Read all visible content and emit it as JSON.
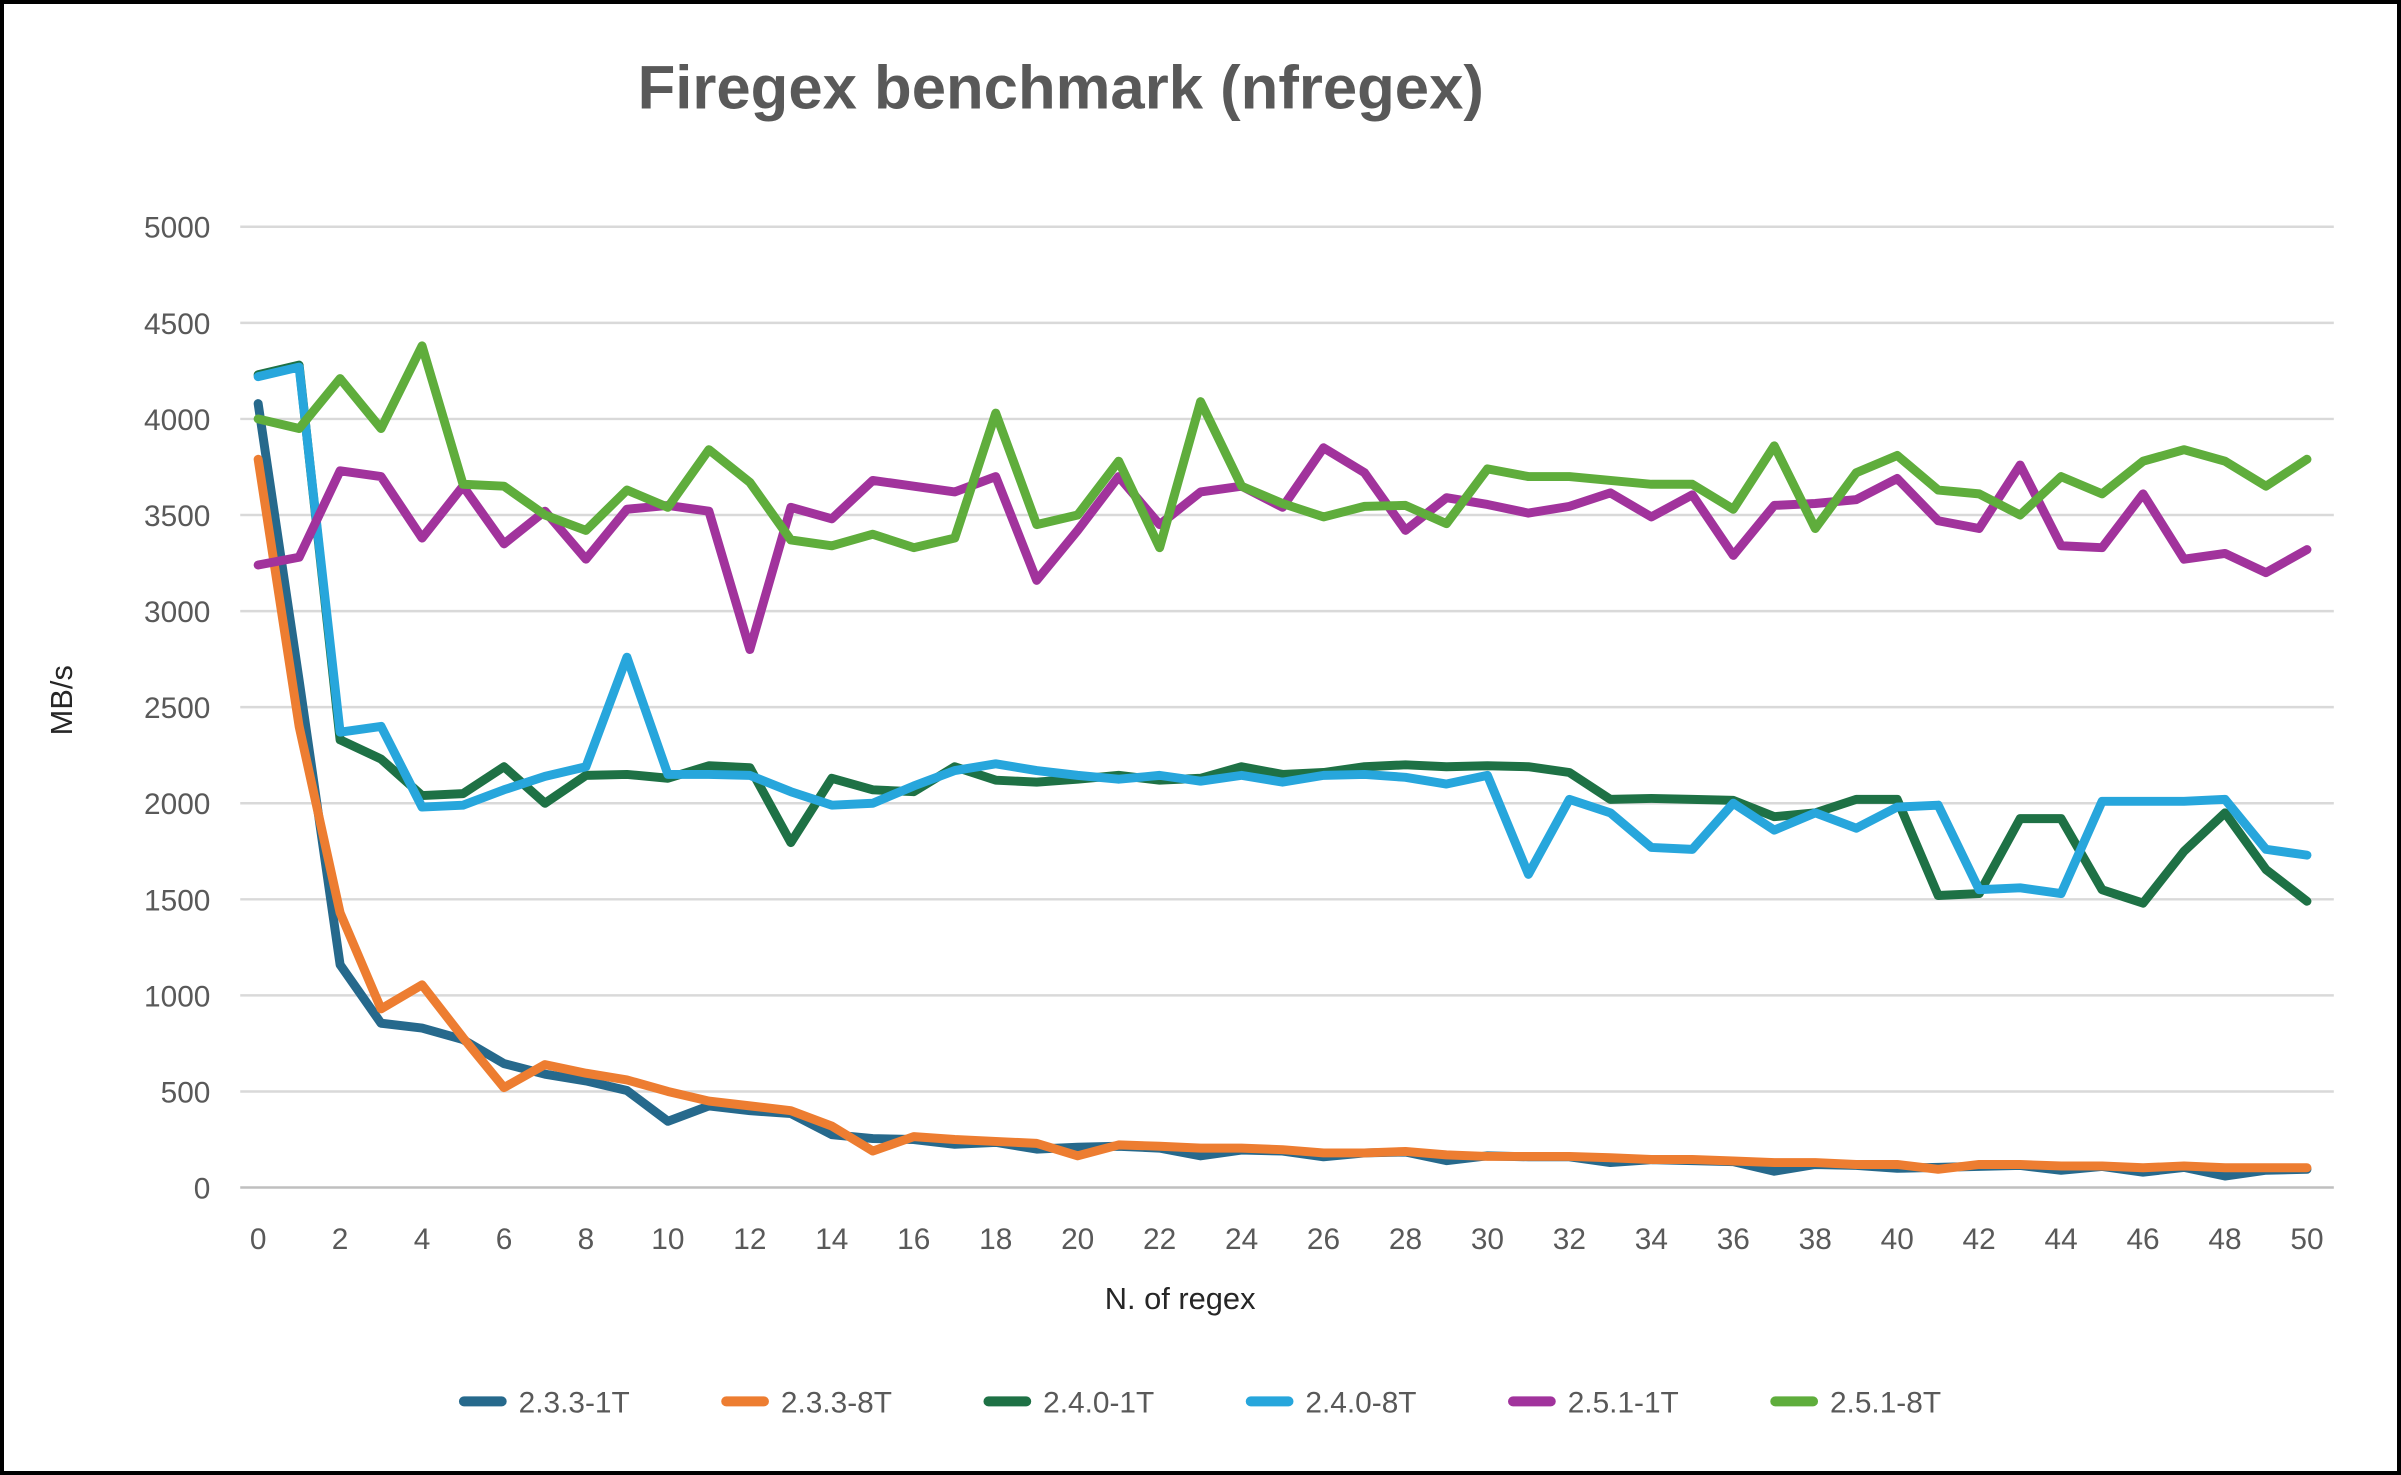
{
  "chart_data": {
    "type": "line",
    "title": "Firegex benchmark (nfregex)",
    "xlabel": "N. of regex",
    "ylabel": "MB/s",
    "ylim": [
      0,
      5000
    ],
    "yticks": [
      0,
      500,
      1000,
      1500,
      2000,
      2500,
      3000,
      3500,
      4000,
      4500,
      5000
    ],
    "xticks": [
      0,
      2,
      4,
      6,
      8,
      10,
      12,
      14,
      16,
      18,
      20,
      22,
      24,
      26,
      28,
      30,
      32,
      34,
      36,
      38,
      40,
      42,
      44,
      46,
      48,
      50
    ],
    "x": [
      0,
      1,
      2,
      3,
      4,
      5,
      6,
      7,
      8,
      9,
      10,
      11,
      12,
      13,
      14,
      15,
      16,
      17,
      18,
      19,
      20,
      21,
      22,
      23,
      24,
      25,
      26,
      27,
      28,
      29,
      30,
      31,
      32,
      33,
      34,
      35,
      36,
      37,
      38,
      39,
      40,
      41,
      42,
      43,
      44,
      45,
      46,
      47,
      48,
      49,
      50
    ],
    "grid": true,
    "legend_position": "bottom",
    "background": "#ffffff",
    "gridline_color": "#d9d9d9",
    "axis_line_color": "#bfbfbf",
    "series": [
      {
        "name": "2.3.3-1T",
        "color": "#26698c",
        "values": [
          4080,
          2640,
          1160,
          855,
          830,
          770,
          645,
          590,
          555,
          505,
          345,
          425,
          400,
          385,
          275,
          255,
          250,
          225,
          235,
          200,
          210,
          215,
          205,
          165,
          195,
          190,
          160,
          180,
          185,
          140,
          165,
          160,
          160,
          130,
          145,
          140,
          135,
          85,
          120,
          115,
          100,
          105,
          110,
          115,
          90,
          110,
          80,
          105,
          60,
          90,
          95
        ]
      },
      {
        "name": "2.3.3-8T",
        "color": "#ed7d31",
        "values": [
          3790,
          2400,
          1430,
          930,
          1055,
          780,
          520,
          640,
          595,
          560,
          500,
          450,
          425,
          400,
          320,
          190,
          265,
          250,
          240,
          230,
          165,
          222,
          215,
          205,
          205,
          197,
          180,
          180,
          188,
          170,
          162,
          162,
          162,
          155,
          146,
          146,
          138,
          130,
          130,
          120,
          120,
          95,
          120,
          120,
          112,
          112,
          103,
          112,
          103,
          103,
          103
        ]
      },
      {
        "name": "2.4.0-1T",
        "color": "#1e7145",
        "values": [
          4230,
          4280,
          2330,
          2230,
          2040,
          2050,
          2190,
          2000,
          2145,
          2150,
          2130,
          2195,
          2185,
          1795,
          2130,
          2070,
          2060,
          2190,
          2120,
          2110,
          2125,
          2145,
          2120,
          2130,
          2190,
          2150,
          2160,
          2190,
          2200,
          2190,
          2195,
          2190,
          2160,
          2020,
          2025,
          2020,
          2015,
          1930,
          1950,
          2020,
          2020,
          1520,
          1530,
          1920,
          1920,
          1550,
          1480,
          1750,
          1950,
          1655,
          1490
        ]
      },
      {
        "name": "2.4.0-8T",
        "color": "#27a6dc",
        "values": [
          4220,
          4270,
          2370,
          2400,
          1980,
          1990,
          2070,
          2140,
          2190,
          2760,
          2150,
          2150,
          2145,
          2060,
          1990,
          2000,
          2090,
          2170,
          2205,
          2170,
          2145,
          2125,
          2145,
          2115,
          2145,
          2110,
          2145,
          2150,
          2135,
          2100,
          2145,
          1630,
          2020,
          1950,
          1770,
          1760,
          2000,
          1860,
          1950,
          1870,
          1980,
          1990,
          1550,
          1560,
          1530,
          2010,
          2010,
          2010,
          2020,
          1760,
          1730
        ]
      },
      {
        "name": "2.5.1-1T",
        "color": "#a1339c",
        "values": [
          3240,
          3280,
          3730,
          3700,
          3380,
          3650,
          3350,
          3520,
          3270,
          3530,
          3550,
          3520,
          2800,
          3540,
          3480,
          3680,
          3650,
          3620,
          3700,
          3160,
          3420,
          3700,
          3450,
          3620,
          3650,
          3540,
          3850,
          3720,
          3420,
          3590,
          3555,
          3510,
          3545,
          3615,
          3490,
          3605,
          3290,
          3550,
          3560,
          3580,
          3690,
          3470,
          3430,
          3760,
          3340,
          3330,
          3610,
          3270,
          3300,
          3200,
          3320
        ]
      },
      {
        "name": "2.5.1-8T",
        "color": "#5fad3c",
        "values": [
          4000,
          3950,
          4210,
          3950,
          4380,
          3660,
          3650,
          3500,
          3420,
          3630,
          3540,
          3840,
          3670,
          3370,
          3340,
          3400,
          3330,
          3380,
          4030,
          3450,
          3500,
          3780,
          3330,
          4090,
          3650,
          3560,
          3490,
          3545,
          3550,
          3455,
          3740,
          3700,
          3700,
          3680,
          3660,
          3660,
          3530,
          3860,
          3430,
          3720,
          3810,
          3630,
          3610,
          3500,
          3700,
          3610,
          3780,
          3840,
          3780,
          3650,
          3790
        ]
      }
    ]
  }
}
